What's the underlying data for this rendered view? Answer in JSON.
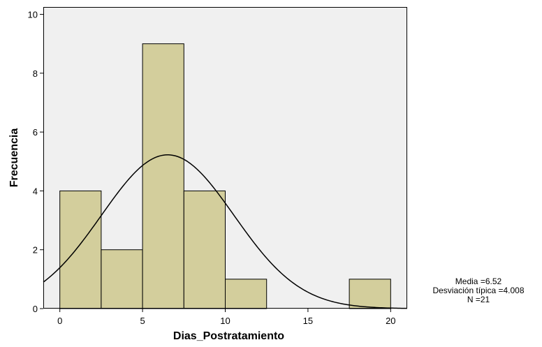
{
  "chart_data": {
    "type": "bar",
    "subtype": "histogram",
    "xlabel": "Dias_Postratamiento",
    "ylabel": "Frecuencia",
    "xlim": [
      -1,
      21
    ],
    "ylim": [
      0,
      10.25
    ],
    "x_ticks": [
      0,
      5,
      10,
      15,
      20
    ],
    "y_ticks": [
      0,
      2,
      4,
      6,
      8,
      10
    ],
    "bin_width": 2.5,
    "bins": [
      {
        "start": 0,
        "end": 2.5,
        "count": 4
      },
      {
        "start": 2.5,
        "end": 5,
        "count": 2
      },
      {
        "start": 5,
        "end": 7.5,
        "count": 9
      },
      {
        "start": 7.5,
        "end": 10,
        "count": 4
      },
      {
        "start": 10,
        "end": 12.5,
        "count": 1
      },
      {
        "start": 12.5,
        "end": 15,
        "count": 0
      },
      {
        "start": 15,
        "end": 17.5,
        "count": 0
      },
      {
        "start": 17.5,
        "end": 20,
        "count": 1
      }
    ],
    "normal_curve": {
      "mean": 6.52,
      "sd": 4.008,
      "n": 21
    },
    "grid": false,
    "colors": {
      "plot_background": "#f0f0f0",
      "bar_fill": "#d3ce9c",
      "bar_stroke": "#000000",
      "curve": "#000000"
    },
    "stats": {
      "mean_line": "Media =6.52",
      "sd_line": "Desviación típica =4.008",
      "n_line": "N =21"
    }
  }
}
